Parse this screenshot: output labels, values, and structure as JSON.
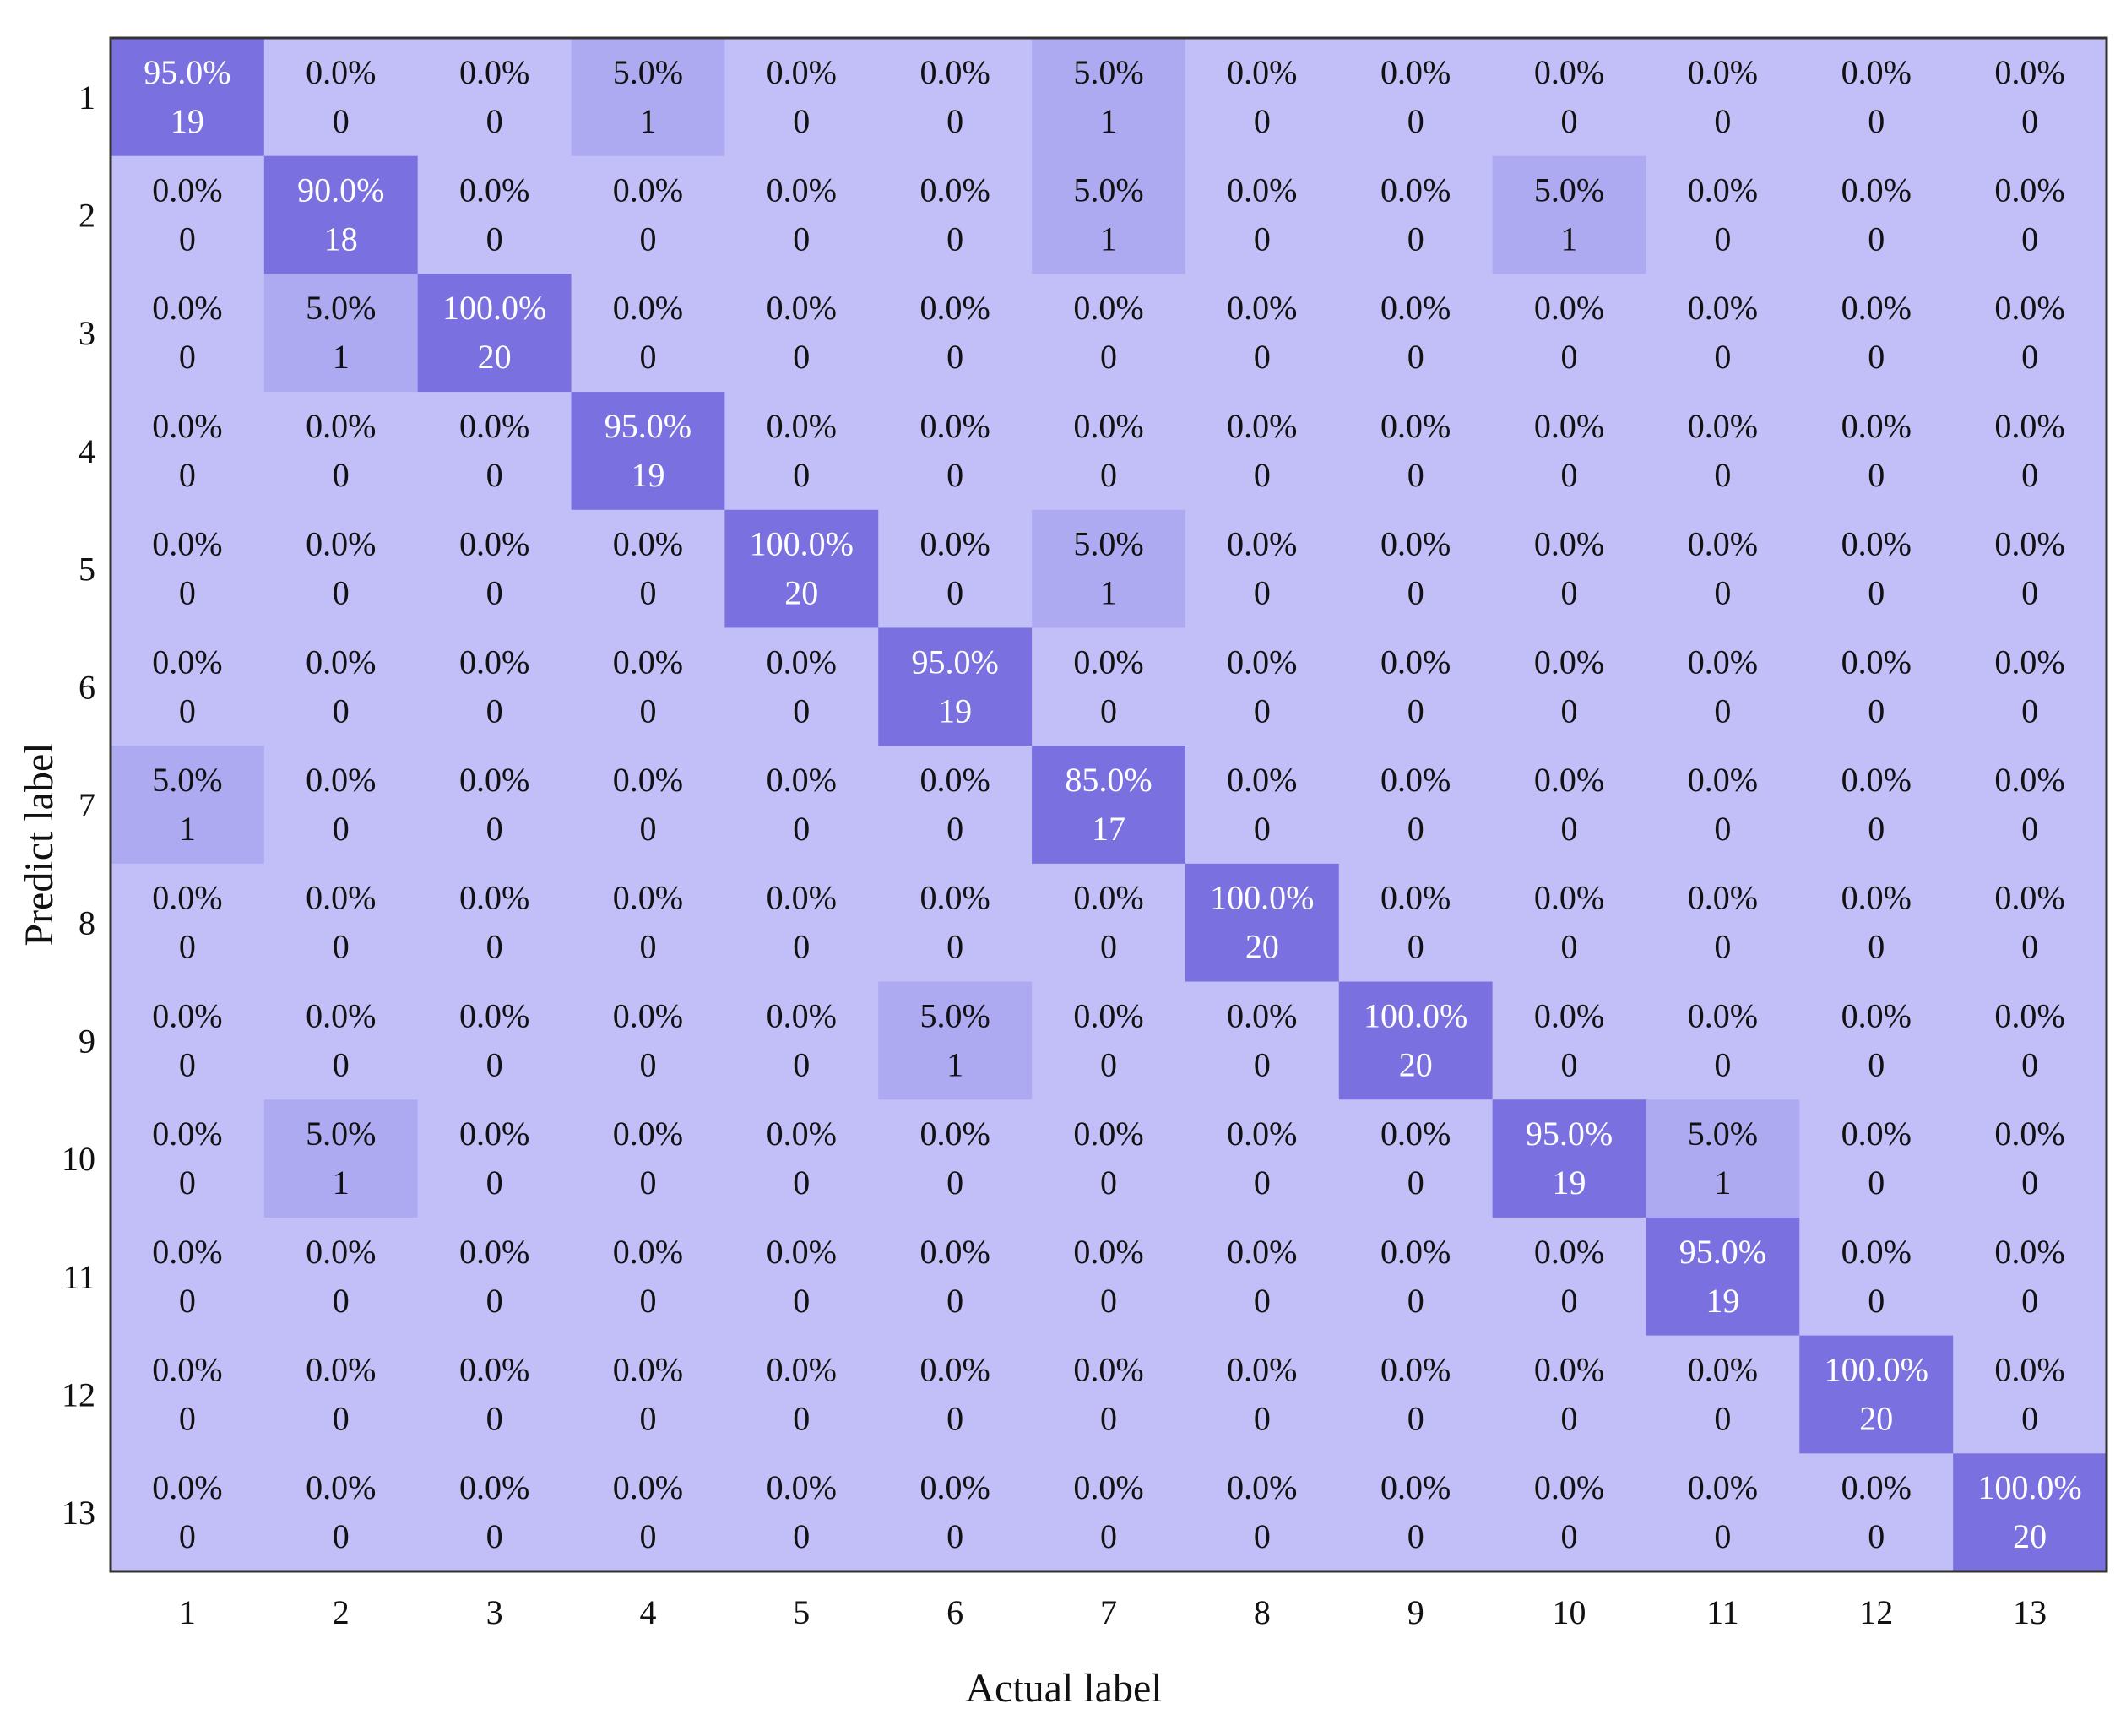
{
  "chart_data": {
    "type": "heatmap",
    "title": "",
    "xlabel": "Actual label",
    "ylabel": "Predict label",
    "x_tick_labels": [
      "1",
      "2",
      "3",
      "4",
      "5",
      "6",
      "7",
      "8",
      "9",
      "10",
      "11",
      "12",
      "13"
    ],
    "y_tick_labels": [
      "1",
      "2",
      "3",
      "4",
      "5",
      "6",
      "7",
      "8",
      "9",
      "10",
      "11",
      "12",
      "13"
    ],
    "counts": [
      [
        19,
        0,
        0,
        1,
        0,
        0,
        1,
        0,
        0,
        0,
        0,
        0,
        0
      ],
      [
        0,
        18,
        0,
        0,
        0,
        0,
        1,
        0,
        0,
        1,
        0,
        0,
        0
      ],
      [
        0,
        1,
        20,
        0,
        0,
        0,
        0,
        0,
        0,
        0,
        0,
        0,
        0
      ],
      [
        0,
        0,
        0,
        19,
        0,
        0,
        0,
        0,
        0,
        0,
        0,
        0,
        0
      ],
      [
        0,
        0,
        0,
        0,
        20,
        0,
        1,
        0,
        0,
        0,
        0,
        0,
        0
      ],
      [
        0,
        0,
        0,
        0,
        0,
        19,
        0,
        0,
        0,
        0,
        0,
        0,
        0
      ],
      [
        1,
        0,
        0,
        0,
        0,
        0,
        17,
        0,
        0,
        0,
        0,
        0,
        0
      ],
      [
        0,
        0,
        0,
        0,
        0,
        0,
        0,
        20,
        0,
        0,
        0,
        0,
        0
      ],
      [
        0,
        0,
        0,
        0,
        0,
        1,
        0,
        0,
        20,
        0,
        0,
        0,
        0
      ],
      [
        0,
        1,
        0,
        0,
        0,
        0,
        0,
        0,
        0,
        19,
        1,
        0,
        0
      ],
      [
        0,
        0,
        0,
        0,
        0,
        0,
        0,
        0,
        0,
        0,
        19,
        0,
        0
      ],
      [
        0,
        0,
        0,
        0,
        0,
        0,
        0,
        0,
        0,
        0,
        0,
        20,
        0
      ],
      [
        0,
        0,
        0,
        0,
        0,
        0,
        0,
        0,
        0,
        0,
        0,
        0,
        20
      ]
    ],
    "percents": [
      [
        "95.0%",
        "0.0%",
        "0.0%",
        "5.0%",
        "0.0%",
        "0.0%",
        "5.0%",
        "0.0%",
        "0.0%",
        "0.0%",
        "0.0%",
        "0.0%",
        "0.0%"
      ],
      [
        "0.0%",
        "90.0%",
        "0.0%",
        "0.0%",
        "0.0%",
        "0.0%",
        "5.0%",
        "0.0%",
        "0.0%",
        "5.0%",
        "0.0%",
        "0.0%",
        "0.0%"
      ],
      [
        "0.0%",
        "5.0%",
        "100.0%",
        "0.0%",
        "0.0%",
        "0.0%",
        "0.0%",
        "0.0%",
        "0.0%",
        "0.0%",
        "0.0%",
        "0.0%",
        "0.0%"
      ],
      [
        "0.0%",
        "0.0%",
        "0.0%",
        "95.0%",
        "0.0%",
        "0.0%",
        "0.0%",
        "0.0%",
        "0.0%",
        "0.0%",
        "0.0%",
        "0.0%",
        "0.0%"
      ],
      [
        "0.0%",
        "0.0%",
        "0.0%",
        "0.0%",
        "100.0%",
        "0.0%",
        "5.0%",
        "0.0%",
        "0.0%",
        "0.0%",
        "0.0%",
        "0.0%",
        "0.0%"
      ],
      [
        "0.0%",
        "0.0%",
        "0.0%",
        "0.0%",
        "0.0%",
        "95.0%",
        "0.0%",
        "0.0%",
        "0.0%",
        "0.0%",
        "0.0%",
        "0.0%",
        "0.0%"
      ],
      [
        "5.0%",
        "0.0%",
        "0.0%",
        "0.0%",
        "0.0%",
        "0.0%",
        "85.0%",
        "0.0%",
        "0.0%",
        "0.0%",
        "0.0%",
        "0.0%",
        "0.0%"
      ],
      [
        "0.0%",
        "0.0%",
        "0.0%",
        "0.0%",
        "0.0%",
        "0.0%",
        "0.0%",
        "100.0%",
        "0.0%",
        "0.0%",
        "0.0%",
        "0.0%",
        "0.0%"
      ],
      [
        "0.0%",
        "0.0%",
        "0.0%",
        "0.0%",
        "0.0%",
        "5.0%",
        "0.0%",
        "0.0%",
        "100.0%",
        "0.0%",
        "0.0%",
        "0.0%",
        "0.0%"
      ],
      [
        "0.0%",
        "5.0%",
        "0.0%",
        "0.0%",
        "0.0%",
        "0.0%",
        "0.0%",
        "0.0%",
        "0.0%",
        "95.0%",
        "5.0%",
        "0.0%",
        "0.0%"
      ],
      [
        "0.0%",
        "0.0%",
        "0.0%",
        "0.0%",
        "0.0%",
        "0.0%",
        "0.0%",
        "0.0%",
        "0.0%",
        "0.0%",
        "95.0%",
        "0.0%",
        "0.0%"
      ],
      [
        "0.0%",
        "0.0%",
        "0.0%",
        "0.0%",
        "0.0%",
        "0.0%",
        "0.0%",
        "0.0%",
        "0.0%",
        "0.0%",
        "0.0%",
        "100.0%",
        "0.0%"
      ],
      [
        "0.0%",
        "0.0%",
        "0.0%",
        "0.0%",
        "0.0%",
        "0.0%",
        "0.0%",
        "0.0%",
        "0.0%",
        "0.0%",
        "0.0%",
        "0.0%",
        "100.0%"
      ]
    ],
    "colors": {
      "zero": "#c2bef7",
      "low": "#aeaaf1",
      "high": "#7a70e0",
      "text_dark": "#111111",
      "text_light": "#ffffff",
      "frame": "#333333"
    },
    "grid": false,
    "legend": "none"
  }
}
